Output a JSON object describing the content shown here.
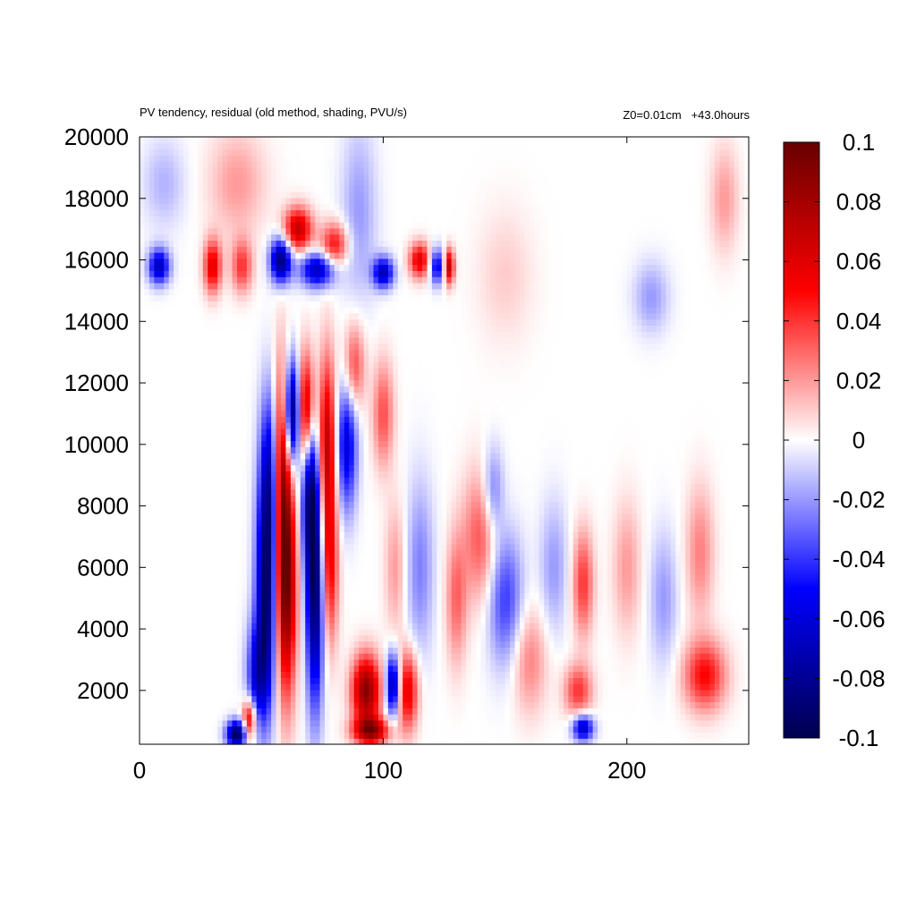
{
  "chart_data": {
    "type": "heatmap",
    "title": "PV tendency, residual (old method, shading, PVU/s)",
    "info_right": "Z0=0.01cm   +43.0hours",
    "xlim": [
      0,
      250
    ],
    "ylim": [
      250,
      20000
    ],
    "xticks": [
      "0",
      "100",
      "200"
    ],
    "yticks": [
      "2000",
      "4000",
      "6000",
      "8000",
      "10000",
      "12000",
      "14000",
      "16000",
      "18000",
      "20000"
    ],
    "colorbar": {
      "range": [
        -0.1,
        0.1
      ],
      "ticks": [
        "0.1",
        "0.08",
        "0.06",
        "0.04",
        "0.02",
        "0",
        "-0.02",
        "-0.04",
        "-0.06",
        "-0.08",
        "-0.1"
      ],
      "colors": [
        "#00004d",
        "#0000ff",
        "#ffffff",
        "#ff0000",
        "#680000"
      ]
    },
    "features": [
      {
        "x": 60,
        "y": 5500,
        "sx": 3,
        "sy": 2500,
        "v": 0.1
      },
      {
        "x": 58,
        "y": 9500,
        "sx": 2.5,
        "sy": 2200,
        "v": 0.08
      },
      {
        "x": 52,
        "y": 5000,
        "sx": 3,
        "sy": 2500,
        "v": -0.09
      },
      {
        "x": 54,
        "y": 9000,
        "sx": 3,
        "sy": 2000,
        "v": -0.07
      },
      {
        "x": 63,
        "y": 11000,
        "sx": 2.5,
        "sy": 1200,
        "v": -0.1
      },
      {
        "x": 72,
        "y": 5000,
        "sx": 2.5,
        "sy": 2500,
        "v": -0.09
      },
      {
        "x": 70,
        "y": 8500,
        "sx": 2.5,
        "sy": 1800,
        "v": -0.08
      },
      {
        "x": 68,
        "y": 11000,
        "sx": 2.5,
        "sy": 1300,
        "v": 0.09
      },
      {
        "x": 77,
        "y": 10000,
        "sx": 2.5,
        "sy": 2000,
        "v": 0.07
      },
      {
        "x": 85,
        "y": 10000,
        "sx": 3,
        "sy": 1500,
        "v": -0.06
      },
      {
        "x": 78,
        "y": 6000,
        "sx": 2.5,
        "sy": 1800,
        "v": 0.05
      },
      {
        "x": 88,
        "y": 12500,
        "sx": 3,
        "sy": 1000,
        "v": 0.04
      },
      {
        "x": 100,
        "y": 11000,
        "sx": 3,
        "sy": 1200,
        "v": 0.035
      },
      {
        "x": 93,
        "y": 2000,
        "sx": 4,
        "sy": 800,
        "v": 0.09
      },
      {
        "x": 104,
        "y": 2200,
        "sx": 2,
        "sy": 700,
        "v": -0.08
      },
      {
        "x": 110,
        "y": 2000,
        "sx": 3,
        "sy": 900,
        "v": 0.06
      },
      {
        "x": 95,
        "y": 700,
        "sx": 5,
        "sy": 300,
        "v": 0.08
      },
      {
        "x": 40,
        "y": 600,
        "sx": 3,
        "sy": 300,
        "v": -0.1
      },
      {
        "x": 48,
        "y": 2500,
        "sx": 3,
        "sy": 1200,
        "v": -0.05
      },
      {
        "x": 45,
        "y": 1000,
        "sx": 2,
        "sy": 500,
        "v": 0.07
      },
      {
        "x": 8,
        "y": 15800,
        "sx": 3,
        "sy": 400,
        "v": -0.07
      },
      {
        "x": 30,
        "y": 15800,
        "sx": 2.5,
        "sy": 600,
        "v": 0.06
      },
      {
        "x": 42,
        "y": 15800,
        "sx": 3,
        "sy": 600,
        "v": 0.04
      },
      {
        "x": 58,
        "y": 16000,
        "sx": 3,
        "sy": 500,
        "v": -0.09
      },
      {
        "x": 65,
        "y": 17000,
        "sx": 4,
        "sy": 500,
        "v": 0.07
      },
      {
        "x": 73,
        "y": 15700,
        "sx": 5,
        "sy": 400,
        "v": -0.07
      },
      {
        "x": 80,
        "y": 16500,
        "sx": 4,
        "sy": 500,
        "v": 0.05
      },
      {
        "x": 100,
        "y": 15600,
        "sx": 3,
        "sy": 350,
        "v": -0.07
      },
      {
        "x": 115,
        "y": 16000,
        "sx": 3,
        "sy": 400,
        "v": 0.06
      },
      {
        "x": 122,
        "y": 15800,
        "sx": 2,
        "sy": 400,
        "v": -0.06
      },
      {
        "x": 127,
        "y": 15800,
        "sx": 1.5,
        "sy": 400,
        "v": 0.07
      },
      {
        "x": 10,
        "y": 18500,
        "sx": 6,
        "sy": 1000,
        "v": -0.015
      },
      {
        "x": 40,
        "y": 18500,
        "sx": 8,
        "sy": 1200,
        "v": 0.02
      },
      {
        "x": 140,
        "y": 7000,
        "sx": 5,
        "sy": 1500,
        "v": 0.035
      },
      {
        "x": 150,
        "y": 5000,
        "sx": 5,
        "sy": 1500,
        "v": -0.04
      },
      {
        "x": 130,
        "y": 5000,
        "sx": 3,
        "sy": 1500,
        "v": 0.03
      },
      {
        "x": 145,
        "y": 8500,
        "sx": 3,
        "sy": 1000,
        "v": -0.03
      },
      {
        "x": 160,
        "y": 3000,
        "sx": 5,
        "sy": 1200,
        "v": 0.025
      },
      {
        "x": 170,
        "y": 6000,
        "sx": 4,
        "sy": 1500,
        "v": -0.02
      },
      {
        "x": 182,
        "y": 5500,
        "sx": 3,
        "sy": 1200,
        "v": 0.04
      },
      {
        "x": 180,
        "y": 2000,
        "sx": 4,
        "sy": 600,
        "v": 0.04
      },
      {
        "x": 182,
        "y": 800,
        "sx": 3,
        "sy": 300,
        "v": -0.07
      },
      {
        "x": 232,
        "y": 2500,
        "sx": 6,
        "sy": 800,
        "v": 0.05
      },
      {
        "x": 200,
        "y": 6000,
        "sx": 4,
        "sy": 1500,
        "v": 0.02
      },
      {
        "x": 215,
        "y": 5000,
        "sx": 4,
        "sy": 1500,
        "v": -0.02
      },
      {
        "x": 230,
        "y": 6500,
        "sx": 4,
        "sy": 1500,
        "v": 0.025
      },
      {
        "x": 115,
        "y": 6000,
        "sx": 4,
        "sy": 2000,
        "v": -0.025
      },
      {
        "x": 105,
        "y": 6000,
        "sx": 3,
        "sy": 1500,
        "v": 0.02
      },
      {
        "x": 150,
        "y": 15500,
        "sx": 8,
        "sy": 1500,
        "v": 0.01
      },
      {
        "x": 210,
        "y": 14800,
        "sx": 5,
        "sy": 800,
        "v": -0.02
      },
      {
        "x": 240,
        "y": 18000,
        "sx": 4,
        "sy": 1200,
        "v": 0.02
      },
      {
        "x": 90,
        "y": 17500,
        "sx": 5,
        "sy": 2000,
        "v": -0.02
      }
    ]
  }
}
